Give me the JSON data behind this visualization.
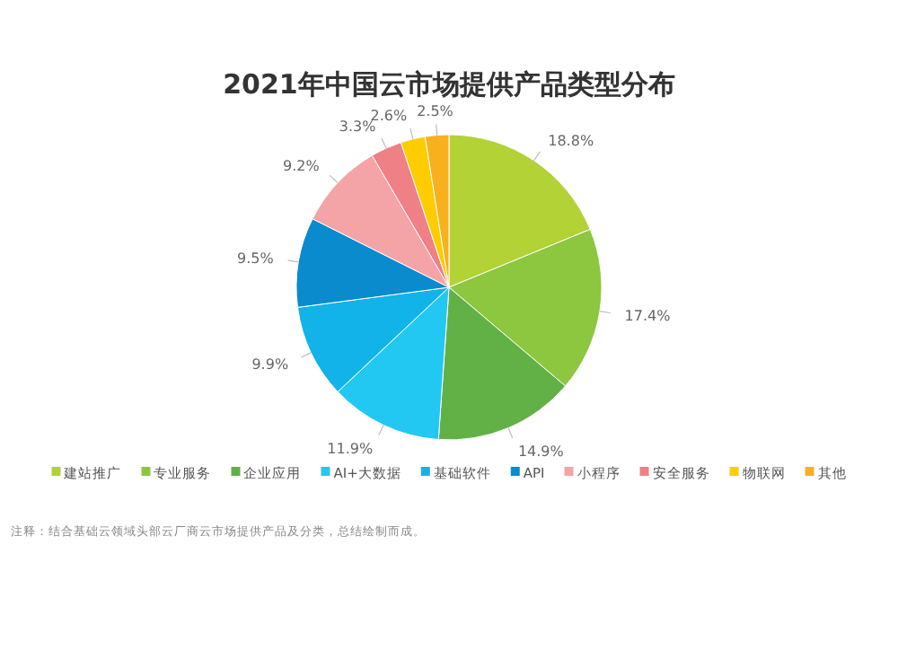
{
  "chart_data": {
    "type": "pie",
    "title": "2021年中国云市场提供产品类型分布",
    "categories": [
      "建站推广",
      "专业服务",
      "企业应用",
      "AI+大数据",
      "基础软件",
      "API",
      "小程序",
      "安全服务",
      "物联网",
      "其他"
    ],
    "values": [
      18.8,
      17.4,
      14.9,
      11.9,
      9.9,
      9.5,
      9.2,
      3.3,
      2.6,
      2.5
    ],
    "colors": [
      "#b2d235",
      "#8dc63f",
      "#62b146",
      "#22c8f2",
      "#12b3e8",
      "#0a8bcd",
      "#f4a3a6",
      "#ef8086",
      "#ffcc00",
      "#f8b01c"
    ],
    "value_labels": [
      "18.8%",
      "17.4%",
      "14.9%",
      "11.9%",
      "9.9%",
      "9.5%",
      "9.2%",
      "3.3%",
      "2.6%",
      "2.5%"
    ],
    "legend": "bottom",
    "annotations": [
      "注释：结合基础云领域头部云厂商云市场提供产品及分类，总结绘制而成。"
    ]
  }
}
